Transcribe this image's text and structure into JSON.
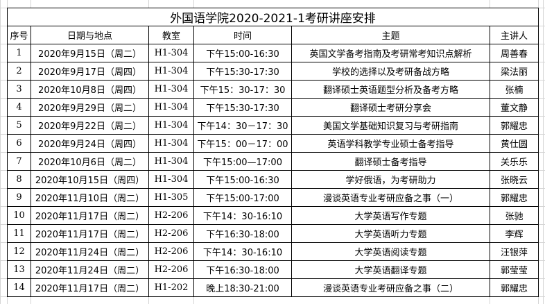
{
  "title": "外国语学院2020-2021-1考研讲座安排",
  "headers": [
    "序号",
    "日期与地点",
    "教室",
    "时间",
    "主题",
    "主讲人"
  ],
  "rows": [
    [
      "1",
      "2020年9月15日（周二）",
      "H1-304",
      "下午15:00-16:30",
      "英国文学备考指南及考研常考知识点解析",
      "周善春"
    ],
    [
      "2",
      "2020年9月17日（周四）",
      "H1-304",
      "下午15:30-17:30",
      "学校的选择以及考研备战方略",
      "梁法丽"
    ],
    [
      "3",
      "2020年10月8日（周四）",
      "H1-304",
      "下午15：30-17：30",
      "翻译硕士英语题型分析及备考方略",
      "张楠"
    ],
    [
      "4",
      "2020年9月29日（周二）",
      "H1-304",
      "下午15:30-17:30",
      "翻译硕士考研分享会",
      "董文静"
    ],
    [
      "5",
      "2020年9月22日（周二）",
      "H1-304",
      "下午14：30－17：30",
      "美国文学基础知识复习与考研指南",
      "郭耀忠"
    ],
    [
      "6",
      "2020年9月24日（周四）",
      "H1-304",
      "下午15：00－17：00",
      "英语学科教学专业硕士备考指导",
      "黄仕圆"
    ],
    [
      "7",
      "2020年10月6日（周二）",
      "H1-304",
      "下午15:00—17:00",
      "翻译硕士备考指导",
      "关乐乐"
    ],
    [
      "8",
      "2020年10月15日（周四）",
      "H1-304",
      "下午15:00-16:30",
      "学好俄语，为考研助力",
      "张晓云"
    ],
    [
      "9",
      "2020年11月10日（周二）",
      "H1-305",
      "下午15:00-17:00",
      "漫谈英语专业考研应备之事（一）",
      "郭耀忠"
    ],
    [
      "10",
      "2020年11月17日（周二）",
      "H2-206",
      "下午14：30-16:10",
      "大学英语写作专题",
      "张驰"
    ],
    [
      "11",
      "2020年11月17日（周二）",
      "H2-206",
      "下午16:30-18:00",
      "大学英语听力专题",
      "李辉"
    ],
    [
      "12",
      "2020年11月24日（周二）",
      "H2-206",
      "下午14：30-16:10",
      "大学英语阅读专题",
      "汪银萍"
    ],
    [
      "13",
      "2020年11月24日（周二）",
      "H2-206",
      "下午16:30-18:00",
      "大学英语翻译专题",
      "郭莹莹"
    ],
    [
      "14",
      "2020年11月17日（周二）",
      "H1-202",
      "晚上18:30-21:00",
      "漫谈英语专业考研应备之事（二）",
      "郭耀忠"
    ]
  ]
}
